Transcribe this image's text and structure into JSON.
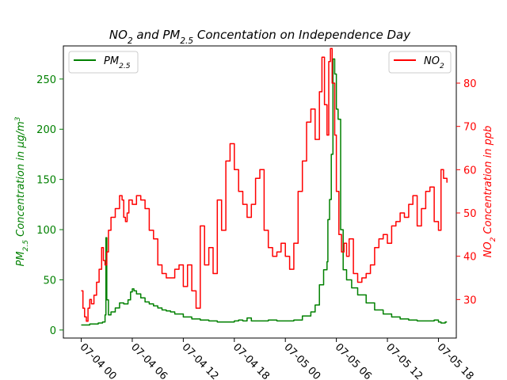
{
  "chart_data": {
    "type": "line",
    "title": "NO2 and PM2.5 Concentation on Independence Day",
    "title_parts": [
      "NO",
      "2",
      " and PM",
      "2.5",
      " Concentation on Independence Day"
    ],
    "x_axis": {
      "ticks": [
        "07-04 00",
        "07-04 06",
        "07-04 12",
        "07-04 18",
        "07-05 00",
        "07-05 06",
        "07-05 12",
        "07-05 18"
      ],
      "tick_hours": [
        0,
        6,
        12,
        18,
        24,
        30,
        36,
        42
      ],
      "range_hours": [
        -2.1,
        44.1
      ],
      "tick_label_rotation": "-45deg"
    },
    "y_left": {
      "label_parts": [
        "PM",
        "2.5",
        " Concentration in μg/m",
        "3"
      ],
      "color": "#008000",
      "ylim": [
        -8,
        283
      ],
      "ticks": [
        0,
        50,
        100,
        150,
        200,
        250
      ]
    },
    "y_right": {
      "label_parts": [
        "NO",
        "2",
        " Concentration in ppb"
      ],
      "color": "#ff0000",
      "ylim": [
        21.1,
        88.6
      ],
      "ticks": [
        30,
        40,
        50,
        60,
        70,
        80
      ]
    },
    "legend": [
      {
        "name_parts": [
          "PM",
          "2.5"
        ],
        "color": "#008000",
        "position": "upper-left"
      },
      {
        "name_parts": [
          "NO",
          "2"
        ],
        "color": "#ff0000",
        "position": "upper-right"
      }
    ],
    "series": [
      {
        "name": "PM2.5",
        "axis": "left",
        "color": "#008000",
        "step": true,
        "x": [
          0,
          0.5,
          1,
          2,
          2.5,
          2.8,
          2.9,
          3.0,
          3.2,
          3.5,
          4,
          4.5,
          5,
          5.5,
          5.8,
          6.0,
          6.2,
          6.5,
          7,
          7.5,
          8,
          8.5,
          9,
          9.5,
          10,
          10.5,
          11,
          12,
          13,
          14,
          15,
          16,
          17,
          18,
          18.5,
          19,
          19.5,
          20,
          21,
          22,
          23,
          24,
          25,
          26,
          27,
          27.5,
          28,
          28.5,
          28.9,
          29.0,
          29.2,
          29.4,
          29.6,
          29.8,
          30.0,
          30.2,
          30.5,
          30.8,
          31.2,
          31.8,
          32.5,
          33.5,
          34.5,
          35.5,
          36.5,
          37.5,
          38.5,
          39.5,
          40.5,
          41.5,
          42.0,
          42.3,
          42.5,
          42.8,
          43.0
        ],
        "values": [
          5,
          5,
          6,
          7,
          8,
          15,
          92,
          30,
          15,
          18,
          22,
          27,
          26,
          30,
          38,
          41,
          39,
          36,
          32,
          28,
          26,
          24,
          22,
          20,
          19,
          18,
          16,
          13,
          11,
          10,
          9,
          8,
          8,
          9,
          10,
          9,
          12,
          9,
          9,
          10,
          9,
          9,
          10,
          14,
          18,
          25,
          45,
          60,
          68,
          110,
          130,
          175,
          270,
          255,
          220,
          210,
          100,
          60,
          50,
          42,
          35,
          27,
          20,
          16,
          13,
          11,
          10,
          9,
          9,
          10,
          8,
          7,
          7,
          8,
          8
        ]
      },
      {
        "name": "NO2",
        "axis": "right",
        "color": "#ff0000",
        "step": true,
        "x": [
          0,
          0.2,
          0.4,
          0.6,
          0.8,
          1.0,
          1.2,
          1.5,
          1.8,
          2.1,
          2.4,
          2.6,
          2.8,
          3.0,
          3.2,
          3.5,
          4.0,
          4.5,
          4.8,
          5.0,
          5.2,
          5.4,
          5.6,
          6.0,
          6.5,
          7.0,
          7.5,
          8.0,
          8.5,
          9.0,
          9.5,
          10.0,
          10.5,
          11.0,
          11.5,
          12.0,
          12.5,
          13.0,
          13.5,
          14.0,
          14.5,
          15.0,
          15.5,
          16.0,
          16.5,
          17.0,
          17.5,
          18.0,
          18.5,
          19.0,
          19.5,
          20.0,
          20.5,
          21.0,
          21.5,
          22.0,
          22.5,
          23.0,
          23.5,
          24.0,
          24.5,
          25.0,
          25.5,
          26.0,
          26.5,
          27.0,
          27.5,
          28.0,
          28.3,
          28.6,
          28.9,
          29.1,
          29.3,
          29.5,
          29.8,
          30.0,
          30.3,
          30.6,
          30.9,
          31.2,
          31.5,
          32.0,
          32.5,
          33.0,
          33.5,
          34.0,
          34.5,
          35.0,
          35.5,
          36.0,
          36.5,
          37.0,
          37.5,
          38.0,
          38.5,
          39.0,
          39.5,
          40.0,
          40.5,
          41.0,
          41.5,
          42.0,
          42.3,
          42.6,
          42.9,
          43.0
        ],
        "values": [
          32,
          28,
          26,
          25,
          28,
          30,
          29,
          31,
          34,
          37,
          42,
          39,
          38,
          41,
          46,
          49,
          51,
          54,
          53,
          49,
          48,
          50,
          53,
          52,
          54,
          53,
          51,
          46,
          44,
          38,
          36,
          35,
          35,
          37,
          38,
          33,
          38,
          32,
          28,
          47,
          38,
          42,
          36,
          53,
          46,
          62,
          66,
          60,
          55,
          52,
          49,
          52,
          58,
          60,
          46,
          42,
          40,
          41,
          43,
          40,
          37,
          43,
          55,
          62,
          71,
          74,
          67,
          78,
          86,
          75,
          68,
          85,
          88,
          80,
          68,
          55,
          45,
          41,
          43,
          40,
          44,
          36,
          34,
          35,
          36,
          38,
          42,
          44,
          45,
          43,
          47,
          48,
          50,
          49,
          52,
          54,
          47,
          51,
          55,
          56,
          48,
          46,
          60,
          58,
          58,
          57
        ]
      }
    ]
  }
}
